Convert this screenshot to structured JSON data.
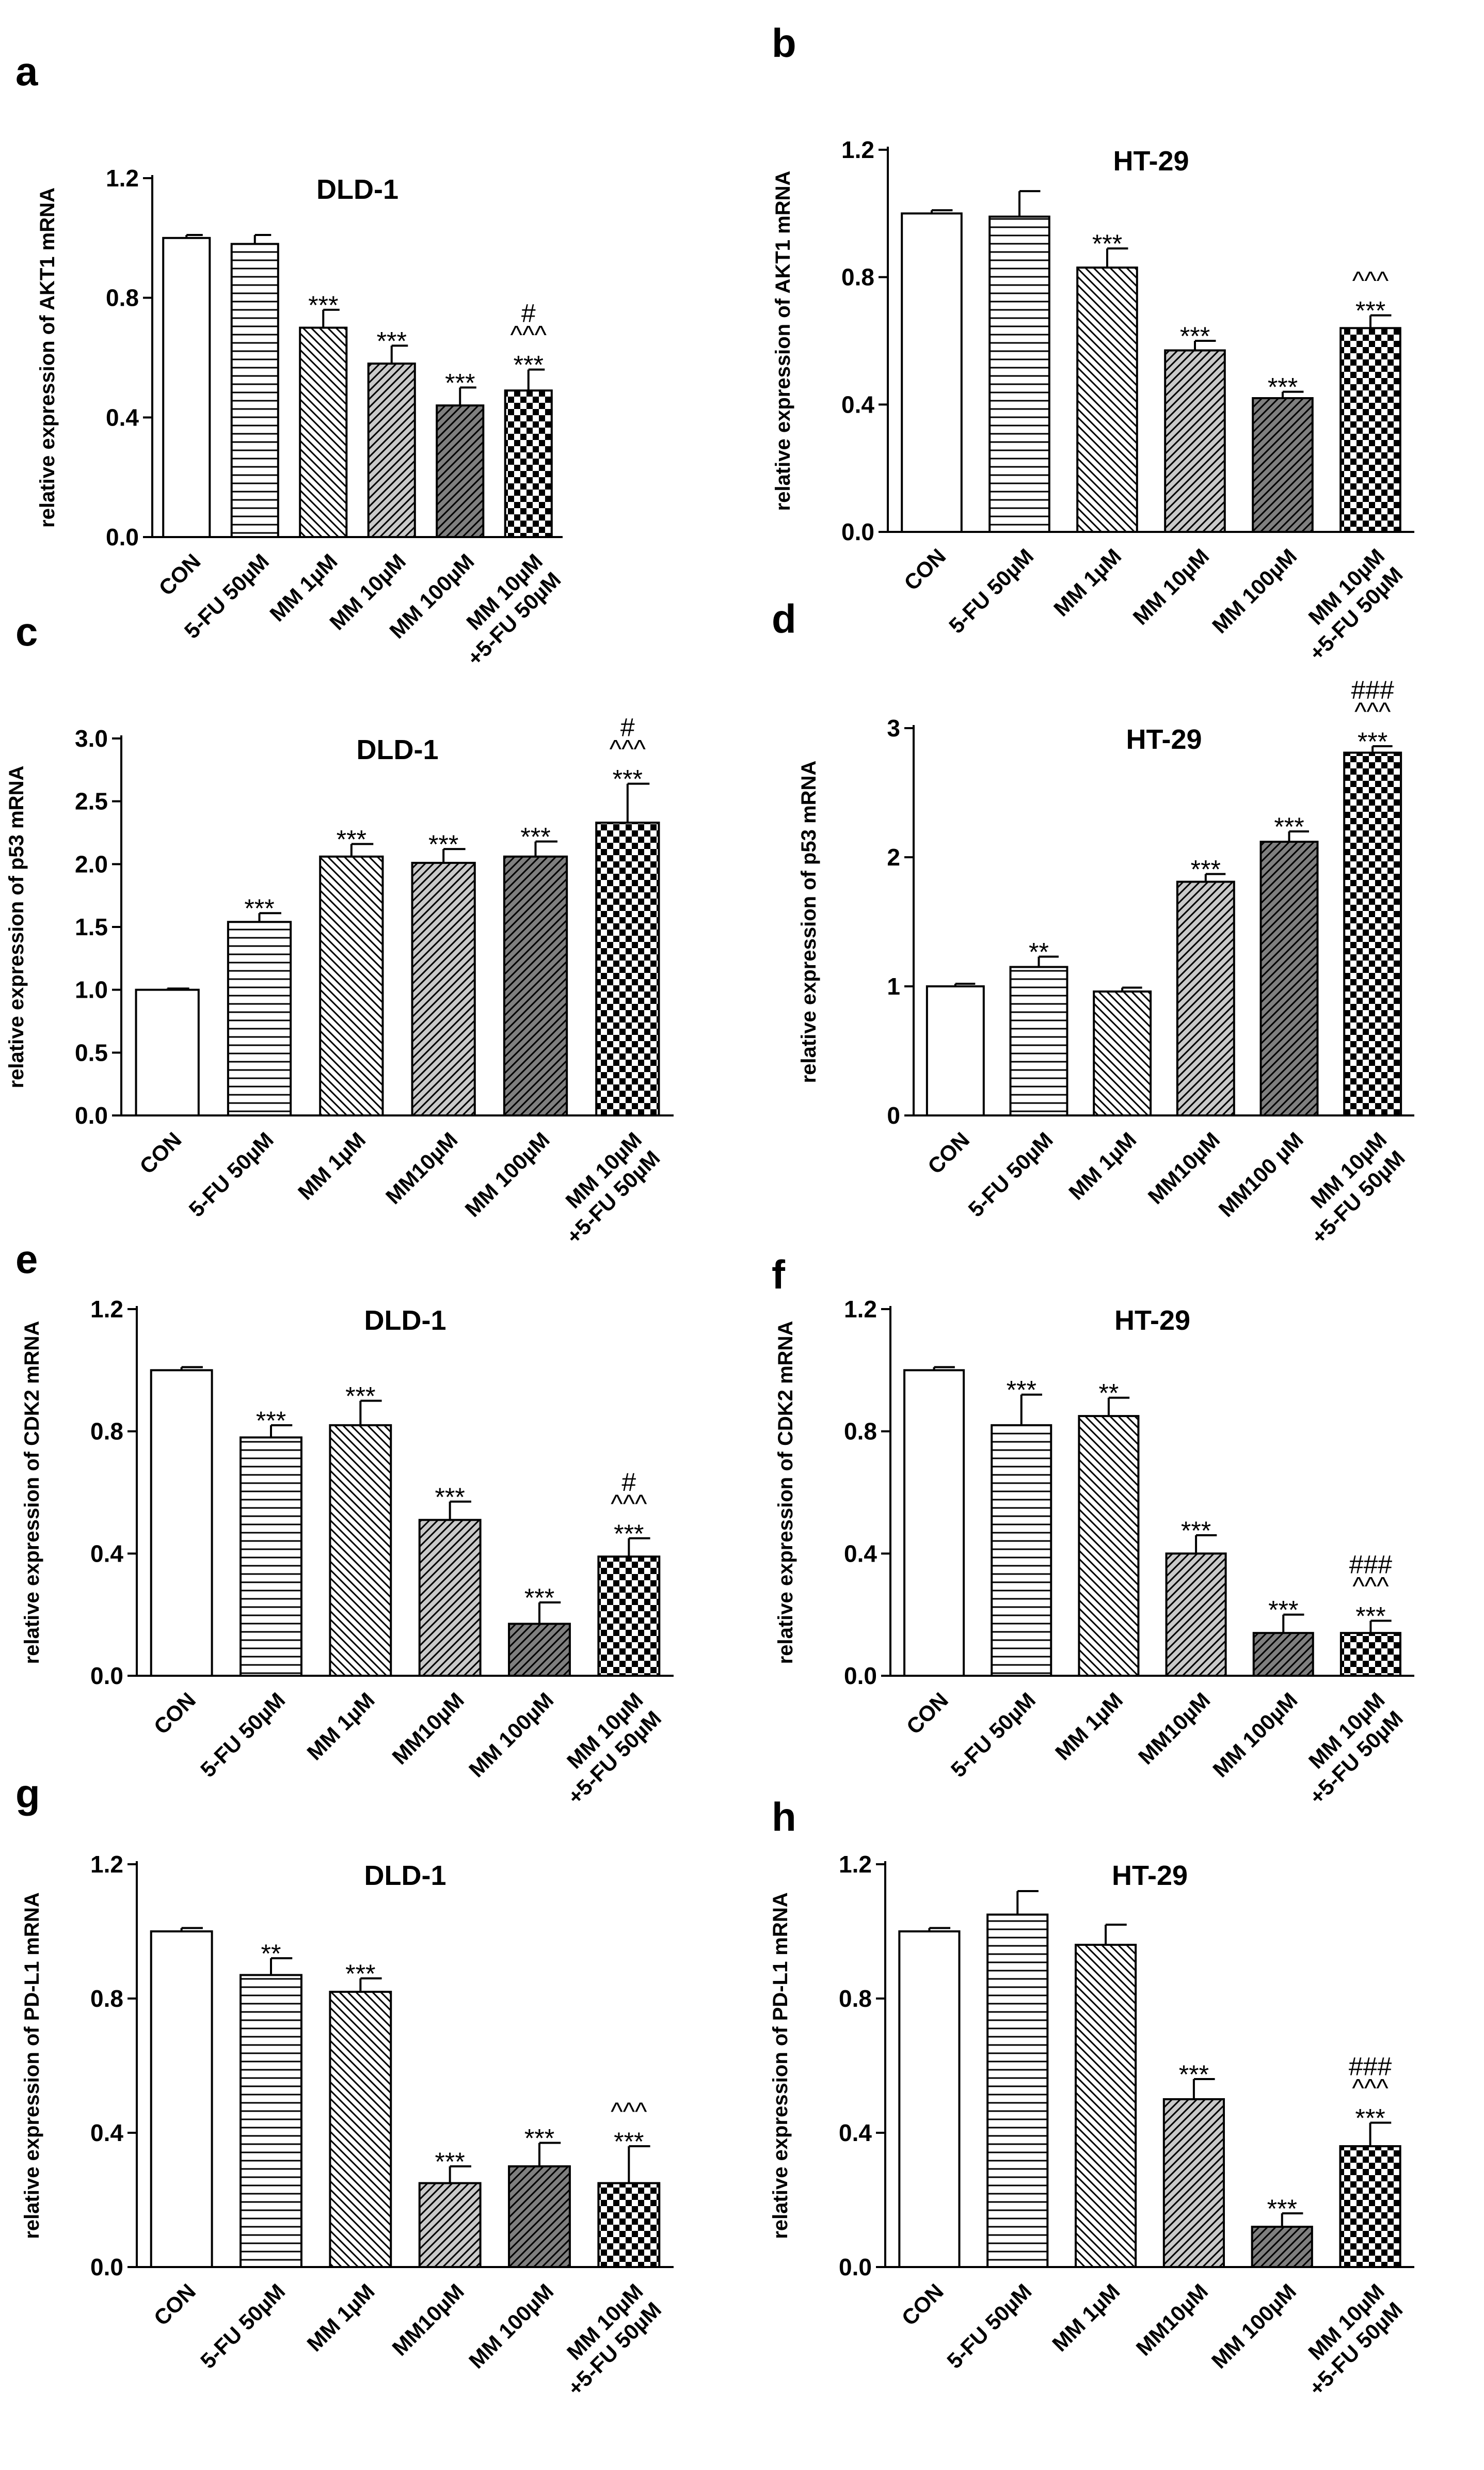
{
  "chart_data": [
    {
      "panel": "a",
      "type": "bar",
      "title": "DLD-1",
      "ylabel": "relative expression of AKT1 mRNA",
      "ylim": [
        0,
        1.2
      ],
      "yticks": [
        "0.0",
        "0.4",
        "0.8",
        "1.2"
      ],
      "ytick_values": [
        0,
        0.4,
        0.8,
        1.2
      ],
      "categories": [
        [
          "CON"
        ],
        [
          "5-FU 50µM"
        ],
        [
          "MM 1µM"
        ],
        [
          "MM 10µM"
        ],
        [
          "MM 100µM"
        ],
        [
          "MM 10µM",
          "+5-FU 50µM"
        ]
      ],
      "values": [
        1.0,
        0.98,
        0.7,
        0.58,
        0.44,
        0.49
      ],
      "errors": [
        0.01,
        0.03,
        0.06,
        0.06,
        0.06,
        0.07
      ],
      "significance": [
        [],
        [],
        [
          "***"
        ],
        [
          "***"
        ],
        [
          "***"
        ],
        [
          "#",
          "^^^",
          "***"
        ]
      ]
    },
    {
      "panel": "b",
      "type": "bar",
      "title": "HT-29",
      "ylabel": "relative expression of AKT1 mRNA",
      "ylim": [
        0,
        1.2
      ],
      "yticks": [
        "0.0",
        "0.4",
        "0.8",
        "1.2"
      ],
      "ytick_values": [
        0,
        0.4,
        0.8,
        1.2
      ],
      "categories": [
        [
          "CON"
        ],
        [
          "5-FU 50µM"
        ],
        [
          "MM 1µM"
        ],
        [
          "MM 10µM"
        ],
        [
          "MM 100µM"
        ],
        [
          "MM 10µM",
          "+5-FU 50µM"
        ]
      ],
      "values": [
        1.0,
        0.99,
        0.83,
        0.57,
        0.42,
        0.64
      ],
      "errors": [
        0.01,
        0.08,
        0.06,
        0.03,
        0.02,
        0.04
      ],
      "significance": [
        [],
        [],
        [
          "***"
        ],
        [
          "***"
        ],
        [
          "***"
        ],
        [
          "^^^",
          "***"
        ]
      ]
    },
    {
      "panel": "c",
      "type": "bar",
      "title": "DLD-1",
      "ylabel": "relative expression of p53 mRNA",
      "ylim": [
        0,
        3.0
      ],
      "yticks": [
        "0.0",
        "0.5",
        "1.0",
        "1.5",
        "2.0",
        "2.5",
        "3.0"
      ],
      "ytick_values": [
        0,
        0.5,
        1.0,
        1.5,
        2.0,
        2.5,
        3.0
      ],
      "categories": [
        [
          "CON"
        ],
        [
          "5-FU 50µM"
        ],
        [
          "MM 1µM"
        ],
        [
          "MM10µM"
        ],
        [
          "MM 100µM"
        ],
        [
          "MM 10µM",
          "+5-FU 50µM"
        ]
      ],
      "values": [
        1.0,
        1.54,
        2.06,
        2.01,
        2.06,
        2.33
      ],
      "errors": [
        0.01,
        0.07,
        0.1,
        0.11,
        0.12,
        0.31
      ],
      "significance": [
        [],
        [
          "***"
        ],
        [
          "***"
        ],
        [
          "***"
        ],
        [
          "***"
        ],
        [
          "#",
          "^^^",
          "***"
        ]
      ]
    },
    {
      "panel": "d",
      "type": "bar",
      "title": "HT-29",
      "ylabel": "relative expression of p53 mRNA",
      "ylim": [
        0,
        3
      ],
      "yticks": [
        "0",
        "1",
        "2",
        "3"
      ],
      "ytick_values": [
        0,
        1,
        2,
        3
      ],
      "categories": [
        [
          "CON"
        ],
        [
          "5-FU 50µM"
        ],
        [
          "MM 1µM"
        ],
        [
          "MM10µM"
        ],
        [
          "MM100 µM"
        ],
        [
          "MM 10µM",
          "+5-FU 50µM"
        ]
      ],
      "values": [
        1.0,
        1.15,
        0.96,
        1.81,
        2.12,
        2.81
      ],
      "errors": [
        0.02,
        0.08,
        0.03,
        0.06,
        0.08,
        0.05
      ],
      "significance": [
        [],
        [
          "**"
        ],
        [],
        [
          "***"
        ],
        [
          "***"
        ],
        [
          "###",
          "^^^",
          "***"
        ]
      ]
    },
    {
      "panel": "e",
      "type": "bar",
      "title": "DLD-1",
      "ylabel": "relative expression of CDK2 mRNA",
      "ylim": [
        0,
        1.2
      ],
      "yticks": [
        "0.0",
        "0.4",
        "0.8",
        "1.2"
      ],
      "ytick_values": [
        0,
        0.4,
        0.8,
        1.2
      ],
      "categories": [
        [
          "CON"
        ],
        [
          "5-FU 50µM"
        ],
        [
          "MM 1µM"
        ],
        [
          "MM10µM"
        ],
        [
          "MM 100µM"
        ],
        [
          "MM 10µM",
          "+5-FU 50µM"
        ]
      ],
      "values": [
        1.0,
        0.78,
        0.82,
        0.51,
        0.17,
        0.39
      ],
      "errors": [
        0.01,
        0.04,
        0.08,
        0.06,
        0.07,
        0.06
      ],
      "significance": [
        [],
        [
          "***"
        ],
        [
          "***"
        ],
        [
          "***"
        ],
        [
          "***"
        ],
        [
          "#",
          "^^^",
          "***"
        ]
      ]
    },
    {
      "panel": "f",
      "type": "bar",
      "title": "HT-29",
      "ylabel": "relative expression of CDK2 mRNA",
      "ylim": [
        0,
        1.2
      ],
      "yticks": [
        "0.0",
        "0.4",
        "0.8",
        "1.2"
      ],
      "ytick_values": [
        0,
        0.4,
        0.8,
        1.2
      ],
      "categories": [
        [
          "CON"
        ],
        [
          "5-FU 50µM"
        ],
        [
          "MM 1µM"
        ],
        [
          "MM10µM"
        ],
        [
          "MM 100µM"
        ],
        [
          "MM 10µM",
          "+5-FU 50µM"
        ]
      ],
      "values": [
        1.0,
        0.82,
        0.85,
        0.4,
        0.14,
        0.14
      ],
      "errors": [
        0.01,
        0.1,
        0.06,
        0.06,
        0.06,
        0.04
      ],
      "significance": [
        [],
        [
          "***"
        ],
        [
          "**"
        ],
        [
          "***"
        ],
        [
          "***"
        ],
        [
          "###",
          "^^^",
          "***"
        ]
      ]
    },
    {
      "panel": "g",
      "type": "bar",
      "title": "DLD-1",
      "ylabel": "relative expression of PD-L1 mRNA",
      "ylim": [
        0,
        1.2
      ],
      "yticks": [
        "0.0",
        "0.4",
        "0.8",
        "1.2"
      ],
      "ytick_values": [
        0,
        0.4,
        0.8,
        1.2
      ],
      "categories": [
        [
          "CON"
        ],
        [
          "5-FU 50µM"
        ],
        [
          "MM 1µM"
        ],
        [
          "MM10µM"
        ],
        [
          "MM 100µM"
        ],
        [
          "MM 10µM",
          "+5-FU 50µM"
        ]
      ],
      "values": [
        1.0,
        0.87,
        0.82,
        0.25,
        0.3,
        0.25
      ],
      "errors": [
        0.01,
        0.05,
        0.04,
        0.05,
        0.07,
        0.11
      ],
      "significance": [
        [],
        [
          "**"
        ],
        [
          "***"
        ],
        [
          "***"
        ],
        [
          "***"
        ],
        [
          "^^^",
          "***"
        ]
      ]
    },
    {
      "panel": "h",
      "type": "bar",
      "title": "HT-29",
      "ylabel": "relative expression of PD-L1 mRNA",
      "ylim": [
        0,
        1.2
      ],
      "yticks": [
        "0.0",
        "0.4",
        "0.8",
        "1.2"
      ],
      "ytick_values": [
        0,
        0.4,
        0.8,
        1.2
      ],
      "categories": [
        [
          "CON"
        ],
        [
          "5-FU 50µM"
        ],
        [
          "MM 1µM"
        ],
        [
          "MM10µM"
        ],
        [
          "MM 100µM"
        ],
        [
          "MM 10µM",
          "+5-FU 50µM"
        ]
      ],
      "values": [
        1.0,
        1.05,
        0.96,
        0.5,
        0.12,
        0.36
      ],
      "errors": [
        0.01,
        0.07,
        0.06,
        0.06,
        0.04,
        0.07
      ],
      "significance": [
        [],
        [],
        [],
        [
          "***"
        ],
        [
          "***"
        ],
        [
          "###",
          "^^^",
          "***"
        ]
      ]
    }
  ]
}
